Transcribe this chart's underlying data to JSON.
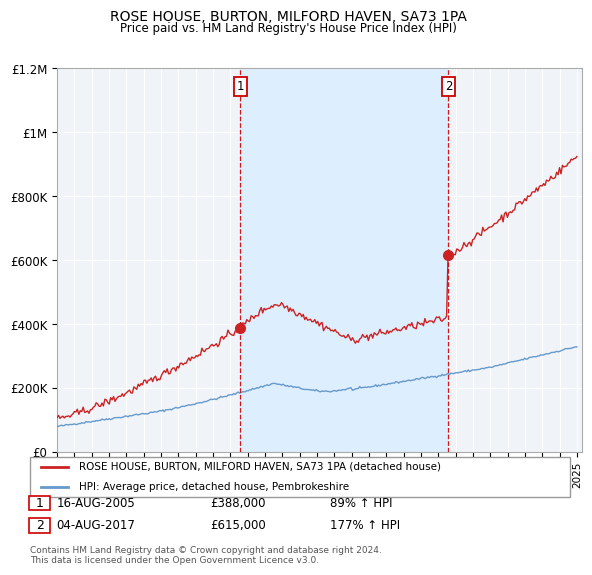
{
  "title": "ROSE HOUSE, BURTON, MILFORD HAVEN, SA73 1PA",
  "subtitle": "Price paid vs. HM Land Registry's House Price Index (HPI)",
  "red_label": "ROSE HOUSE, BURTON, MILFORD HAVEN, SA73 1PA (detached house)",
  "blue_label": "HPI: Average price, detached house, Pembrokeshire",
  "sale1_date": "16-AUG-2005",
  "sale1_price": 388000,
  "sale1_hpi": "89% ↑ HPI",
  "sale2_date": "04-AUG-2017",
  "sale2_price": 615000,
  "sale2_hpi": "177% ↑ HPI",
  "footer": "Contains HM Land Registry data © Crown copyright and database right 2024.\nThis data is licensed under the Open Government Licence v3.0.",
  "ylim": [
    0,
    1200000
  ],
  "yticks": [
    0,
    200000,
    400000,
    600000,
    800000,
    1000000,
    1200000
  ],
  "ytick_labels": [
    "£0",
    "£200K",
    "£400K",
    "£600K",
    "£800K",
    "£1M",
    "£1.2M"
  ],
  "red_color": "#cc2222",
  "blue_color": "#6699cc",
  "shade_color": "#ddeeff",
  "plot_bg": "#f0f4f8",
  "sale1_x": 2005.583,
  "sale2_x": 2017.583
}
